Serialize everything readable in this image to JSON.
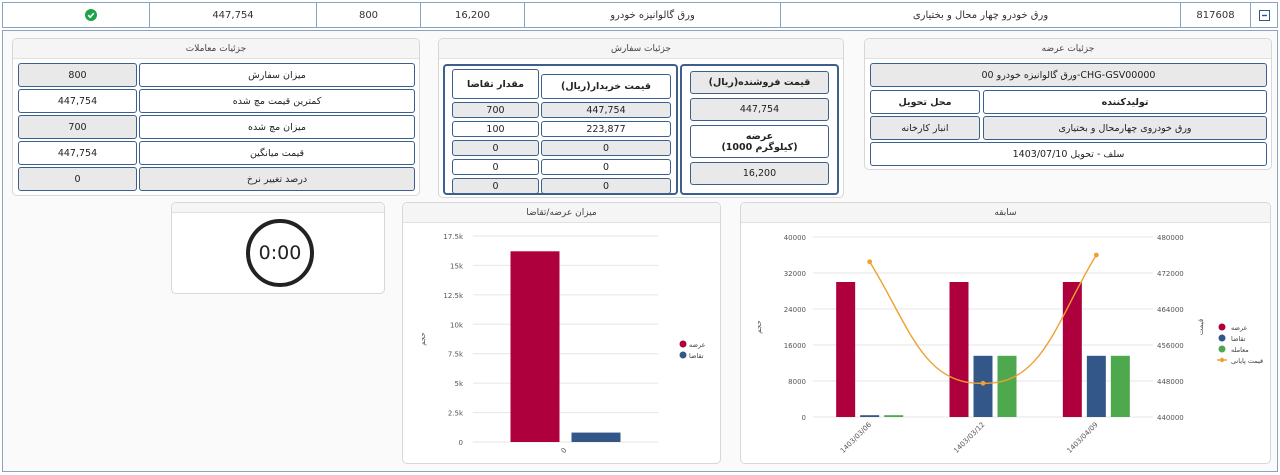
{
  "topbar": {
    "expand_icon": "minus-square-icon",
    "code": "817608",
    "title": "ورق خودرو چهار محال و بختیاری",
    "product": "ورق گالوانیزه خودرو",
    "price": "16,200",
    "volume": "800",
    "value": "447,754",
    "status_icon": "check-circle-icon",
    "status_color": "#1fa34a"
  },
  "supply": {
    "title": "جزئیات عرضه",
    "product": "ورق گالوانیزه خودرو 00-CHG-GSV00000",
    "producer_label": "تولیدکننده",
    "delivery_label": "محل تحویل",
    "producer_value": "ورق خودروی چهارمحال و بختیاری",
    "delivery_value": "انبار کارخانه",
    "delivery_note": "سلف - تحویل 1403/07/10"
  },
  "order": {
    "title": "جزئیات سفارش",
    "seller_price_label": "قیمت فروشنده(ریال)",
    "seller_price": "447,754",
    "supply_label": "عرضه",
    "supply_unit": "(1000 کیلوگرم)",
    "supply_value": "16,200",
    "buyer_price_label": "قیمت خریدار(ریال)",
    "demand_qty_label": "مقدار تقاضا",
    "rows": [
      {
        "price": "447,754",
        "qty": "700"
      },
      {
        "price": "223,877",
        "qty": "100"
      },
      {
        "price": "0",
        "qty": "0"
      },
      {
        "price": "0",
        "qty": "0"
      },
      {
        "price": "0",
        "qty": "0"
      }
    ]
  },
  "trades": {
    "title": "جزئیات معاملات",
    "rows": [
      {
        "label": "میزان سفارش",
        "value": "800"
      },
      {
        "label": "کمترین قیمت مچ شده",
        "value": "447,754"
      },
      {
        "label": "میزان مچ شده",
        "value": "700"
      },
      {
        "label": "قیمت میانگین",
        "value": "447,754"
      },
      {
        "label": "درصد تغییر نرخ",
        "value": "0"
      }
    ]
  },
  "timer": {
    "value": "0:00"
  },
  "chart_data": [
    {
      "type": "bar",
      "title": "میزان عرضه/تقاضا",
      "categories": [
        "0"
      ],
      "ylabel": "حجم",
      "ylim": [
        0,
        17500
      ],
      "yticks": [
        "0",
        "2.5k",
        "5k",
        "7.5k",
        "10k",
        "12.5k",
        "15k",
        "17.5k"
      ],
      "series": [
        {
          "name": "عرضه",
          "color": "#ad003d",
          "values": [
            16200
          ]
        },
        {
          "name": "تقاضا",
          "color": "#34578a",
          "values": [
            800
          ]
        }
      ],
      "legend": "right"
    },
    {
      "type": "bar",
      "title": "سابقه",
      "categories": [
        "1403/03/06",
        "1403/03/12",
        "1403/04/09"
      ],
      "ylabel": "حجم",
      "ylabel_right": "قیمت",
      "ylim": [
        0,
        40000
      ],
      "yticks": [
        "0",
        "8000",
        "16000",
        "24000",
        "32000",
        "40000"
      ],
      "ylim_right": [
        440000,
        480000
      ],
      "yticks_right": [
        "440000",
        "448000",
        "456000",
        "464000",
        "472000",
        "480000"
      ],
      "series": [
        {
          "name": "عرضه",
          "color": "#ad003d",
          "values": [
            30000,
            30000,
            30000
          ]
        },
        {
          "name": "تقاضا",
          "color": "#34578a",
          "values": [
            400,
            13600,
            13600
          ]
        },
        {
          "name": "معامله",
          "color": "#4ea84e",
          "values": [
            400,
            13600,
            13600
          ]
        },
        {
          "name": "قیمت پایانی",
          "type": "line",
          "color": "#f0a030",
          "axis": "right",
          "values": [
            474500,
            447500,
            476000
          ]
        }
      ],
      "legend": "right"
    }
  ]
}
